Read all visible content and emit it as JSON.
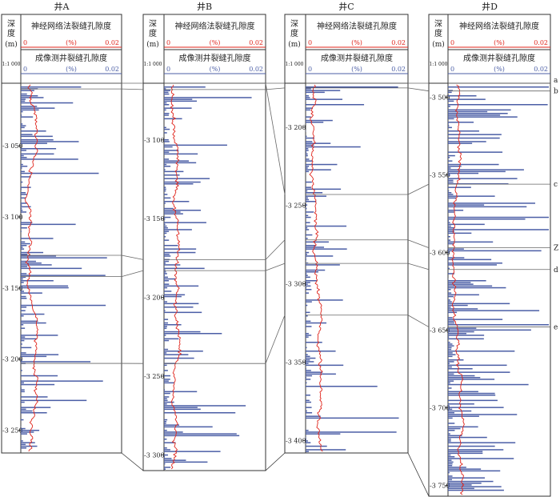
{
  "chart_data": {
    "type": "well-log-correlation",
    "wells": [
      {
        "name": "井A",
        "depth_range": [
          3006,
          3266
        ],
        "ticks": [
          3050,
          3100,
          3150,
          3200,
          3250
        ],
        "markers": {
          "a": 3006,
          "b": 3010,
          "Z": 3127,
          "d": 3142,
          "e": 3203
        }
      },
      {
        "name": "井B",
        "depth_range": [
          3064,
          3310
        ],
        "ticks": [
          3100,
          3150,
          3200,
          3250,
          3300
        ],
        "markers": {
          "a": 3064,
          "b": 3068,
          "Z": 3176,
          "d": 3183,
          "e": 3242
        }
      },
      {
        "name": "井C",
        "depth_range": [
          3172,
          3408
        ],
        "ticks": [
          3200,
          3250,
          3300,
          3350,
          3400
        ],
        "markers": {
          "a": 3172,
          "b": 3175,
          "c": 3243,
          "Z": 3272,
          "d": 3287,
          "e": 3320
        }
      },
      {
        "name": "井D",
        "depth_range": [
          3491,
          3757
        ],
        "ticks": [
          3500,
          3550,
          3600,
          3650,
          3700,
          3750
        ],
        "markers": {
          "a": 3491,
          "b": 3496,
          "c": 3556,
          "Z": 3597,
          "d": 3611,
          "e": 3648
        }
      }
    ],
    "depth_header": [
      "深",
      "度",
      "(m)"
    ],
    "scale": "1:1 000",
    "series": [
      {
        "name": "神经网络法裂缝孔隙度",
        "unit": "(%)",
        "range": [
          0,
          0.02
        ],
        "color": "#e0241b"
      },
      {
        "name": "成像测井裂缝孔隙度",
        "unit": "(%)",
        "range": [
          0,
          0.02
        ],
        "color": "#4b5ea6"
      }
    ],
    "marker_labels": [
      "a",
      "b",
      "c",
      "Z",
      "d",
      "e"
    ]
  },
  "labels": {
    "range_min": "0",
    "range_max": "0.02"
  }
}
